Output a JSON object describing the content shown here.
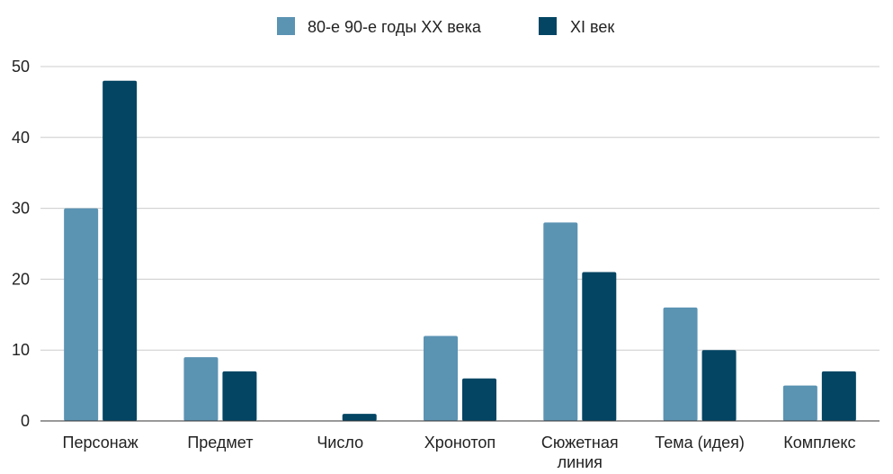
{
  "chart_data": {
    "type": "bar",
    "title": "",
    "xlabel": "",
    "ylabel": "",
    "categories": [
      "Персонаж",
      "Предмет",
      "Число",
      "Хронотоп",
      "Сюжетная линия",
      "Тема (идея)",
      "Комплекс"
    ],
    "series": [
      {
        "name": "80-е 90-е годы XX века",
        "color": "#5b93b3",
        "values": [
          30,
          9,
          0,
          12,
          28,
          16,
          5
        ]
      },
      {
        "name": "XI век",
        "color": "#034563",
        "values": [
          48,
          7,
          1,
          6,
          21,
          10,
          7
        ]
      }
    ],
    "ylim": [
      0,
      50
    ],
    "yticks": [
      "0",
      "10",
      "20",
      "30",
      "40",
      "50"
    ],
    "grid": true,
    "legend_position": "top-center"
  }
}
